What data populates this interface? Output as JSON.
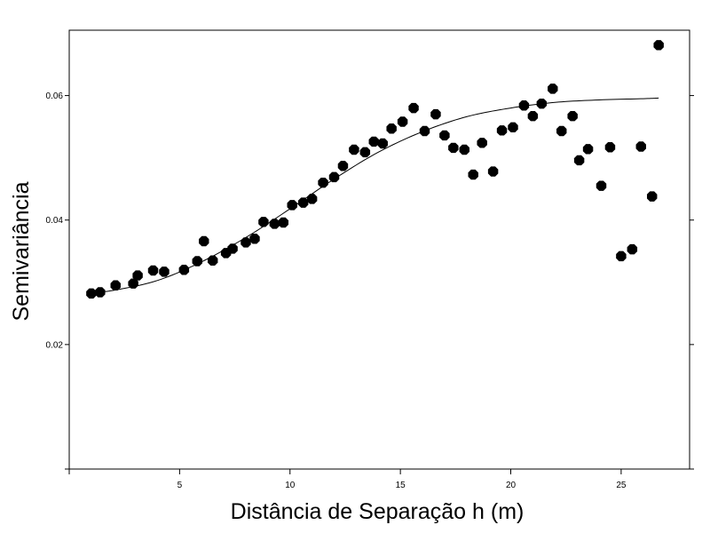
{
  "chart_data": {
    "type": "scatter",
    "title": "",
    "xlabel": "Distância de Separação h (m)",
    "ylabel": "Semivariância",
    "xlim": [
      0,
      28.1
    ],
    "ylim": [
      0,
      0.0705
    ],
    "x_ticks": [
      {
        "value": 5,
        "label": "5"
      },
      {
        "value": 10,
        "label": "10"
      },
      {
        "value": 15,
        "label": "15"
      },
      {
        "value": 20,
        "label": "20"
      },
      {
        "value": 25,
        "label": "25"
      }
    ],
    "y_ticks": [
      {
        "value": 0.02,
        "label": "0.02"
      },
      {
        "value": 0.04,
        "label": "0.04"
      },
      {
        "value": 0.06,
        "label": "0.06"
      }
    ],
    "grid": false,
    "point_color": "#000000",
    "line_color": "#000000",
    "points": {
      "x": [
        1.0,
        1.4,
        2.1,
        2.9,
        3.1,
        3.8,
        4.3,
        5.2,
        5.8,
        6.1,
        6.5,
        7.1,
        7.4,
        8.0,
        8.4,
        8.8,
        9.3,
        9.7,
        10.1,
        10.6,
        11.0,
        11.5,
        12.0,
        12.4,
        12.9,
        13.4,
        13.8,
        14.2,
        14.6,
        15.1,
        15.6,
        16.1,
        16.6,
        17.0,
        17.4,
        17.9,
        18.3,
        18.7,
        19.2,
        19.6,
        20.1,
        20.6,
        21.0,
        21.4,
        21.9,
        22.3,
        22.8,
        23.1,
        23.5,
        24.1,
        24.5,
        25.0,
        25.5,
        25.9,
        26.4,
        26.7
      ],
      "y": [
        0.0282,
        0.0284,
        0.0295,
        0.0298,
        0.0311,
        0.0319,
        0.0317,
        0.032,
        0.0334,
        0.0366,
        0.0335,
        0.0347,
        0.0354,
        0.0364,
        0.037,
        0.0397,
        0.0394,
        0.0396,
        0.0424,
        0.0428,
        0.0434,
        0.046,
        0.0469,
        0.0487,
        0.0513,
        0.0509,
        0.0526,
        0.0523,
        0.0547,
        0.0558,
        0.058,
        0.0543,
        0.057,
        0.0536,
        0.0516,
        0.0513,
        0.0473,
        0.0524,
        0.0478,
        0.0544,
        0.0549,
        0.0584,
        0.0567,
        0.0587,
        0.0611,
        0.0543,
        0.0567,
        0.0496,
        0.0514,
        0.0455,
        0.0517,
        0.0342,
        0.0353,
        0.0518,
        0.0438,
        0.0681
      ]
    },
    "model_curve": {
      "x": [
        0.9,
        2,
        4,
        6,
        8,
        10,
        12,
        14,
        16,
        18,
        20,
        22,
        24,
        26,
        26.7
      ],
      "y": [
        0.0283,
        0.0287,
        0.0303,
        0.0333,
        0.0372,
        0.0418,
        0.0466,
        0.0509,
        0.0542,
        0.0566,
        0.058,
        0.0589,
        0.0593,
        0.0595,
        0.0596
      ]
    }
  }
}
